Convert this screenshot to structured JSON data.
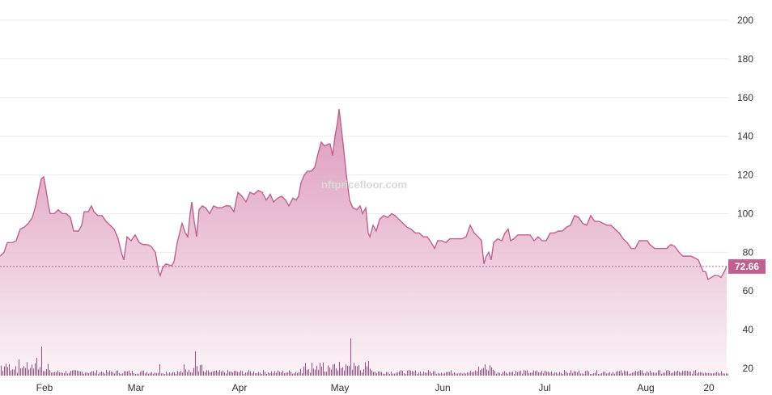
{
  "watermark": "nftpricefloor.com",
  "chart_data": {
    "type": "area",
    "y_axis": {
      "ticks": [
        20,
        40,
        60,
        80,
        100,
        120,
        140,
        160,
        180,
        200
      ],
      "range": [
        16,
        208
      ],
      "position": "right"
    },
    "x_axis": {
      "ticks": [
        "Feb",
        "Mar",
        "Apr",
        "May",
        "Jun",
        "Jul",
        "Aug",
        "20"
      ]
    },
    "grid": true,
    "colors": {
      "line": "#c0608f",
      "fill_top": "#d98fb4",
      "fill_bottom": "#fbf3f7",
      "volume": "#b5457e",
      "last_label_bg": "#c0608f"
    },
    "last_value": 72.66,
    "series": [
      {
        "values": [
          [
            0,
            78
          ],
          [
            5,
            80
          ],
          [
            9,
            85
          ],
          [
            15,
            85
          ],
          [
            20,
            86
          ],
          [
            25,
            92
          ],
          [
            30,
            93
          ],
          [
            35,
            95
          ],
          [
            40,
            98
          ],
          [
            44,
            104
          ],
          [
            48,
            112
          ],
          [
            51,
            118
          ],
          [
            54,
            119
          ],
          [
            57,
            112
          ],
          [
            60,
            104
          ],
          [
            62,
            100
          ],
          [
            67,
            100
          ],
          [
            72,
            102
          ],
          [
            77,
            100
          ],
          [
            82,
            100
          ],
          [
            87,
            98
          ],
          [
            91,
            91
          ],
          [
            97,
            91
          ],
          [
            101,
            94
          ],
          [
            104,
            101
          ],
          [
            109,
            101
          ],
          [
            113,
            104
          ],
          [
            116,
            101
          ],
          [
            121,
            99
          ],
          [
            126,
            99
          ],
          [
            131,
            96
          ],
          [
            136,
            94
          ],
          [
            141,
            92
          ],
          [
            146,
            87
          ],
          [
            150,
            80
          ],
          [
            153,
            76
          ],
          [
            157,
            88
          ],
          [
            162,
            86
          ],
          [
            167,
            89
          ],
          [
            172,
            85
          ],
          [
            177,
            84
          ],
          [
            182,
            84
          ],
          [
            187,
            83
          ],
          [
            192,
            80
          ],
          [
            196,
            70
          ],
          [
            198,
            68
          ],
          [
            201,
            72
          ],
          [
            205,
            74
          ],
          [
            212,
            73
          ],
          [
            215,
            75
          ],
          [
            219,
            85
          ],
          [
            222,
            90
          ],
          [
            225,
            95
          ],
          [
            229,
            90
          ],
          [
            232,
            88
          ],
          [
            235,
            100
          ],
          [
            237,
            106
          ],
          [
            240,
            96
          ],
          [
            243,
            88
          ],
          [
            246,
            102
          ],
          [
            250,
            104
          ],
          [
            254,
            103
          ],
          [
            259,
            100
          ],
          [
            264,
            104
          ],
          [
            269,
            103
          ],
          [
            274,
            103
          ],
          [
            279,
            104
          ],
          [
            284,
            104
          ],
          [
            289,
            101
          ],
          [
            294,
            111
          ],
          [
            299,
            109
          ],
          [
            304,
            106
          ],
          [
            309,
            111
          ],
          [
            314,
            110
          ],
          [
            319,
            112
          ],
          [
            324,
            111
          ],
          [
            329,
            107
          ],
          [
            334,
            110
          ],
          [
            338,
            106
          ],
          [
            343,
            108
          ],
          [
            348,
            109
          ],
          [
            353,
            107
          ],
          [
            357,
            104
          ],
          [
            362,
            108
          ],
          [
            366,
            107
          ],
          [
            369,
            109
          ],
          [
            372,
            116
          ],
          [
            376,
            120
          ],
          [
            380,
            122
          ],
          [
            385,
            122
          ],
          [
            389,
            124
          ],
          [
            393,
            131
          ],
          [
            397,
            137
          ],
          [
            401,
            135
          ],
          [
            406,
            136
          ],
          [
            408,
            136
          ],
          [
            411,
            130
          ],
          [
            414,
            140
          ],
          [
            417,
            147
          ],
          [
            419,
            154
          ],
          [
            421,
            147
          ],
          [
            424,
            136
          ],
          [
            428,
            120
          ],
          [
            432,
            107
          ],
          [
            436,
            103
          ],
          [
            441,
            102
          ],
          [
            445,
            104
          ],
          [
            448,
            100
          ],
          [
            452,
            103
          ],
          [
            455,
            90
          ],
          [
            457,
            88
          ],
          [
            461,
            94
          ],
          [
            465,
            91
          ],
          [
            469,
            97
          ],
          [
            474,
            99
          ],
          [
            479,
            98
          ],
          [
            484,
            100
          ],
          [
            488,
            99
          ],
          [
            493,
            97
          ],
          [
            498,
            95
          ],
          [
            503,
            93
          ],
          [
            508,
            92
          ],
          [
            513,
            90
          ],
          [
            518,
            90
          ],
          [
            523,
            88
          ],
          [
            528,
            88
          ],
          [
            533,
            85
          ],
          [
            537,
            82
          ],
          [
            541,
            86
          ],
          [
            546,
            86
          ],
          [
            551,
            85
          ],
          [
            556,
            87
          ],
          [
            561,
            87
          ],
          [
            566,
            87
          ],
          [
            571,
            87
          ],
          [
            576,
            88
          ],
          [
            581,
            94
          ],
          [
            586,
            90
          ],
          [
            591,
            88
          ],
          [
            595,
            86
          ],
          [
            598,
            74
          ],
          [
            601,
            78
          ],
          [
            604,
            80
          ],
          [
            607,
            76
          ],
          [
            610,
            85
          ],
          [
            615,
            87
          ],
          [
            620,
            86
          ],
          [
            624,
            90
          ],
          [
            628,
            92
          ],
          [
            631,
            86
          ],
          [
            635,
            87
          ],
          [
            640,
            89
          ],
          [
            645,
            89
          ],
          [
            650,
            89
          ],
          [
            655,
            89
          ],
          [
            660,
            86
          ],
          [
            665,
            88
          ],
          [
            670,
            86
          ],
          [
            675,
            86
          ],
          [
            680,
            90
          ],
          [
            685,
            90
          ],
          [
            690,
            91
          ],
          [
            695,
            91
          ],
          [
            700,
            93
          ],
          [
            705,
            94
          ],
          [
            710,
            99
          ],
          [
            715,
            98
          ],
          [
            720,
            95
          ],
          [
            725,
            94
          ],
          [
            730,
            99
          ],
          [
            735,
            96
          ],
          [
            740,
            96
          ],
          [
            745,
            95
          ],
          [
            750,
            94
          ],
          [
            755,
            94
          ],
          [
            760,
            92
          ],
          [
            765,
            90
          ],
          [
            770,
            87
          ],
          [
            775,
            85
          ],
          [
            780,
            82
          ],
          [
            785,
            82
          ],
          [
            790,
            86
          ],
          [
            795,
            86
          ],
          [
            800,
            86
          ],
          [
            803,
            84
          ],
          [
            806,
            83
          ],
          [
            809,
            82
          ],
          [
            814,
            82
          ],
          [
            819,
            82
          ],
          [
            824,
            82
          ],
          [
            829,
            84
          ],
          [
            834,
            83
          ],
          [
            839,
            80
          ],
          [
            844,
            78
          ],
          [
            849,
            78
          ],
          [
            854,
            78
          ],
          [
            859,
            77
          ],
          [
            863,
            76
          ],
          [
            866,
            73
          ],
          [
            869,
            70
          ],
          [
            872,
            70
          ],
          [
            875,
            66
          ],
          [
            879,
            67
          ],
          [
            883,
            68
          ],
          [
            887,
            68
          ],
          [
            891,
            67
          ],
          [
            895,
            70
          ],
          [
            898,
            72.66
          ]
        ]
      }
    ]
  }
}
